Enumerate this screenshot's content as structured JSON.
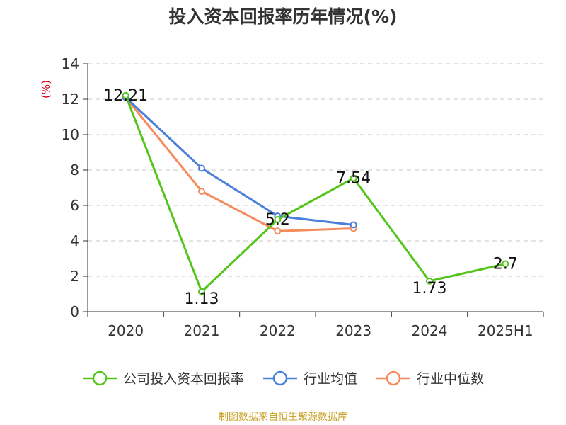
{
  "chart_data": {
    "type": "line",
    "title": "投入资本回报率历年情况(%)",
    "ylabel": "(%)",
    "categories": [
      "2020",
      "2021",
      "2022",
      "2023",
      "2024",
      "2025H1"
    ],
    "ylim": [
      0,
      14
    ],
    "yticks": [
      0,
      2,
      4,
      6,
      8,
      10,
      12,
      14
    ],
    "grid": true,
    "legend_position": "bottom",
    "series": [
      {
        "name": "公司投入资本回报率",
        "color": "#52c41a",
        "values": [
          12.21,
          1.13,
          5.2,
          7.54,
          1.73,
          2.7
        ],
        "data_labels": [
          "12.21",
          "1.13",
          "5.2",
          "7.54",
          "1.73",
          "2.7"
        ]
      },
      {
        "name": "行业均值",
        "color": "#4a7fd9",
        "values": [
          12.1,
          8.1,
          5.4,
          4.9,
          null,
          null
        ]
      },
      {
        "name": "行业中位数",
        "color": "#f58b5c",
        "values": [
          12.1,
          6.8,
          4.55,
          4.7,
          null,
          null
        ]
      }
    ]
  },
  "source": "制图数据来自恒生聚源数据库"
}
